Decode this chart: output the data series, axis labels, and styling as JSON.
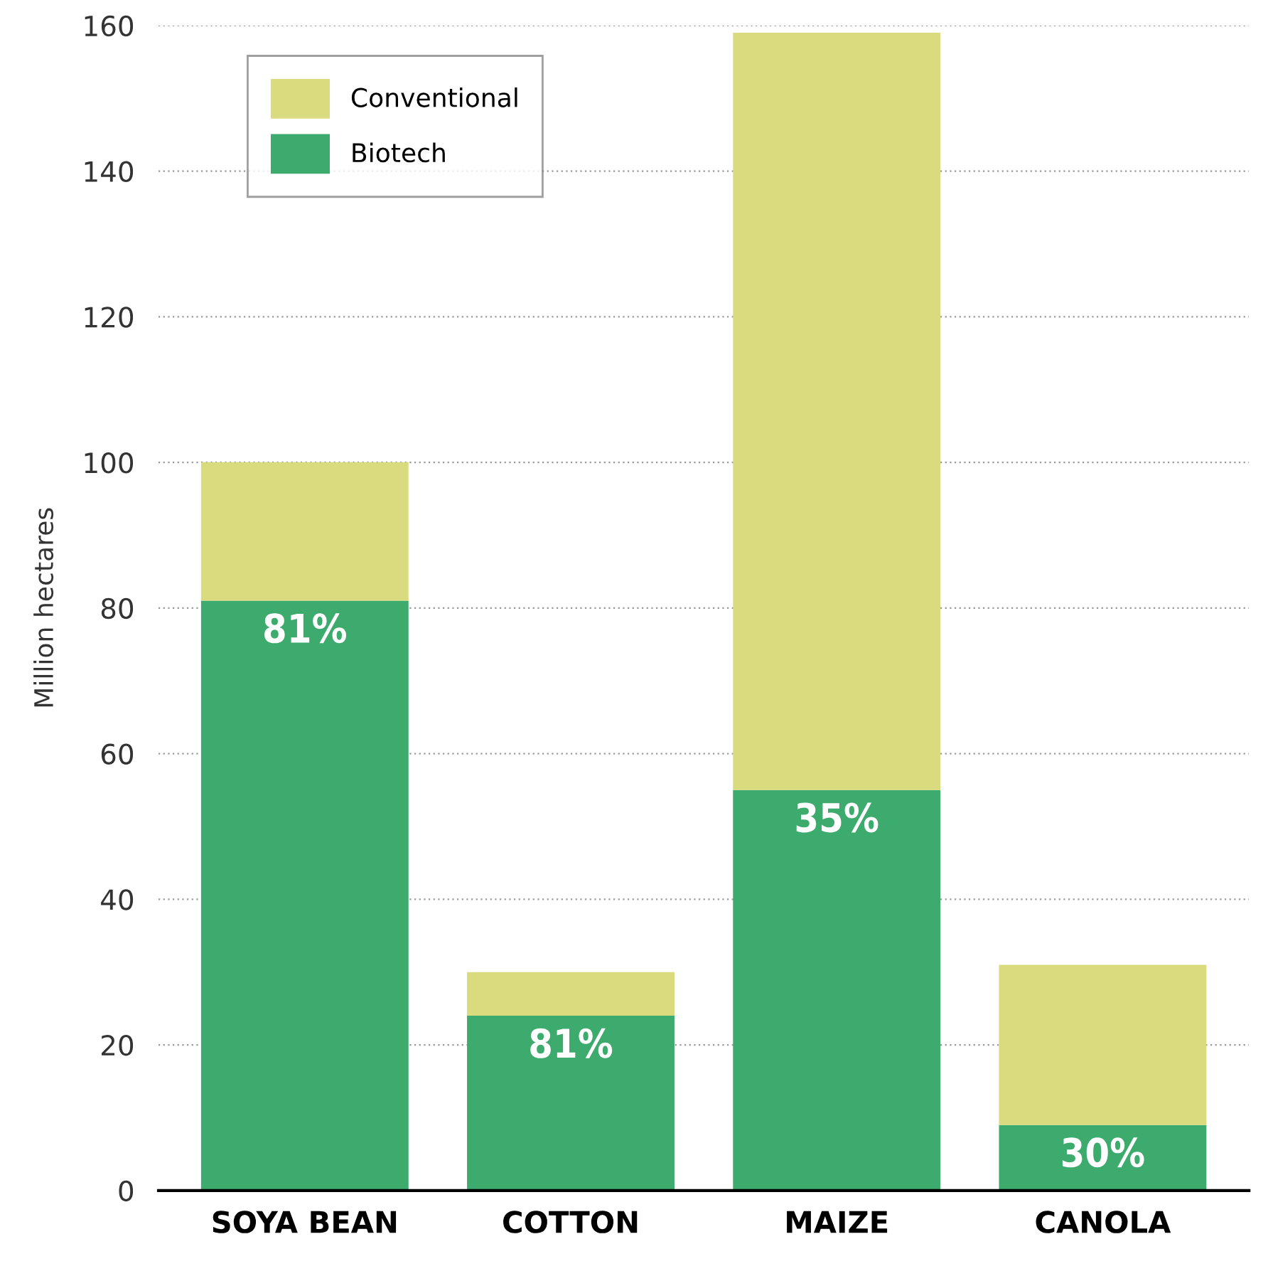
{
  "chart_data": {
    "type": "bar",
    "stacked": true,
    "ylabel": "Million hectares",
    "categories": [
      "SOYA BEAN",
      "COTTON",
      "MAIZE",
      "CANOLA"
    ],
    "series": [
      {
        "name": "Biotech",
        "color": "#3daa6e",
        "values": [
          81,
          24,
          55,
          9
        ]
      },
      {
        "name": "Conventional",
        "color": "#d9db7e",
        "values": [
          19,
          6,
          104,
          22
        ]
      }
    ],
    "ylim": [
      0,
      160
    ],
    "yticks": [
      0,
      20,
      40,
      60,
      80,
      100,
      120,
      140,
      160
    ],
    "grid": "y",
    "legend": "top left",
    "annotations": [
      {
        "text": "81%",
        "x": "SOYA BEAN",
        "y": 81
      },
      {
        "text": "81%",
        "x": "COTTON",
        "y": 24
      },
      {
        "text": "35%",
        "x": "MAIZE",
        "y": 55
      },
      {
        "text": "30%",
        "x": "CANOLA",
        "y": 9
      }
    ]
  }
}
